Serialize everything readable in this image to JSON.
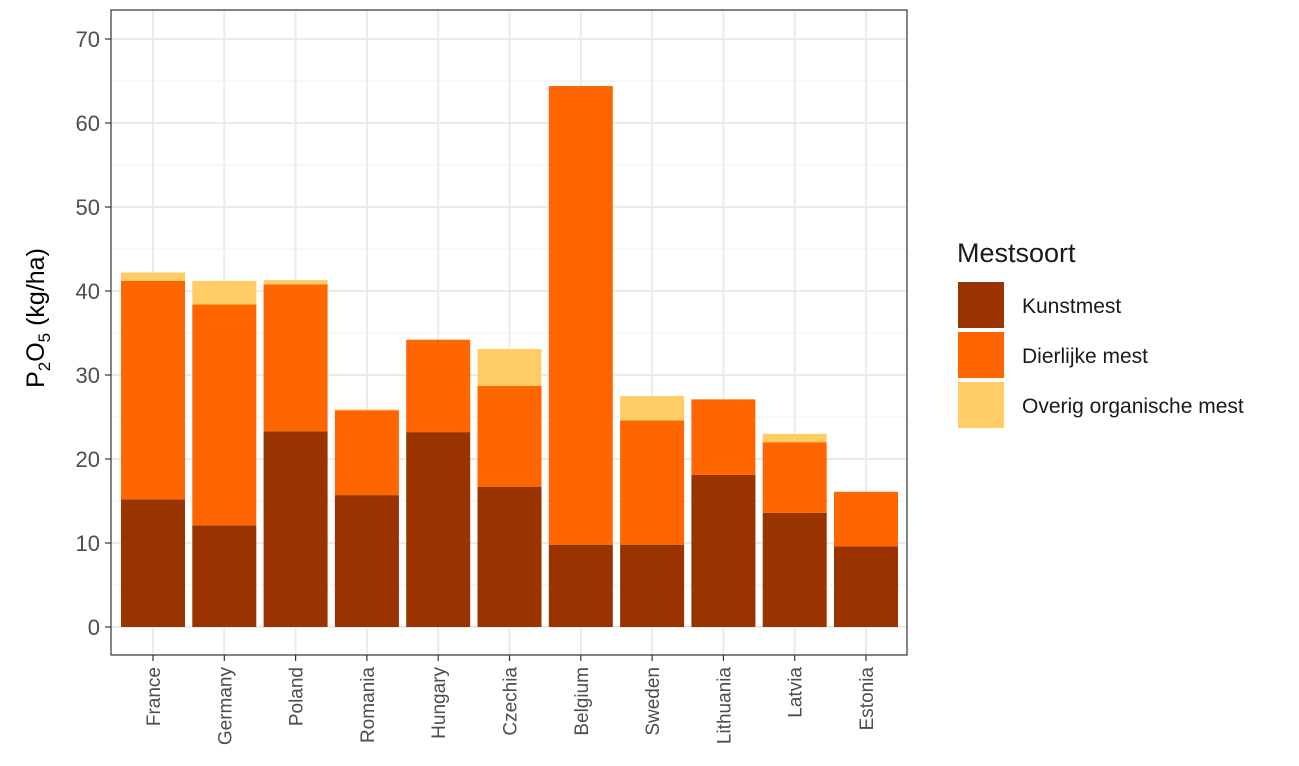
{
  "chart_data": {
    "type": "bar",
    "stacked": true,
    "ylabel": {
      "base": "P",
      "sub1": "2",
      "mid": "O",
      "sub2": "5",
      "unit": " (kg/ha)"
    },
    "xlabel": "",
    "ylim": [
      0,
      70
    ],
    "yticks": [
      0,
      10,
      20,
      30,
      40,
      50,
      60,
      70
    ],
    "y_tick_labels": [
      "0",
      "10",
      "20",
      "30",
      "40",
      "50",
      "60",
      "70"
    ],
    "grid": true,
    "legend_position": "right",
    "legend_title": "Mestsoort",
    "categories": [
      "France",
      "Germany",
      "Poland",
      "Romania",
      "Hungary",
      "Czechia",
      "Belgium",
      "Sweden",
      "Lithuania",
      "Latvia",
      "Estonia"
    ],
    "series": [
      {
        "name": "Kunstmest",
        "color": "#993300",
        "values": [
          15.2,
          12.1,
          23.3,
          15.7,
          23.2,
          16.7,
          9.8,
          9.8,
          18.1,
          13.6,
          9.6
        ]
      },
      {
        "name": "Dierlijke mest",
        "color": "#FF6600",
        "values": [
          26.0,
          26.3,
          17.5,
          10.1,
          11.0,
          12.0,
          54.6,
          14.8,
          9.0,
          8.4,
          6.5
        ]
      },
      {
        "name": "Overig organische mest",
        "color": "#FFCC66",
        "values": [
          1.0,
          2.8,
          0.5,
          0.1,
          0.0,
          4.4,
          0.0,
          2.9,
          0.0,
          1.0,
          0.0
        ]
      }
    ]
  }
}
